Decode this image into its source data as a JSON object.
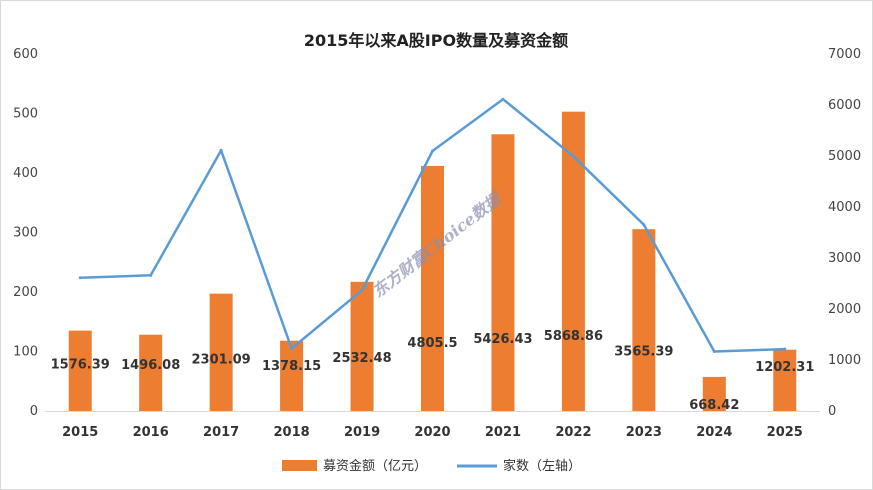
{
  "chart_data": {
    "type": "bar",
    "title": "2015年以来A股IPO数量及募资金额",
    "categories": [
      "2015",
      "2016",
      "2017",
      "2018",
      "2019",
      "2020",
      "2021",
      "2022",
      "2023",
      "2024",
      "2025"
    ],
    "series": [
      {
        "name": "募资金额（亿元）",
        "type": "bar",
        "axis": "right",
        "color": "#ed7d31",
        "values": [
          1576.39,
          1496.08,
          2301.09,
          1378.15,
          2532.48,
          4805.5,
          5426.43,
          5868.86,
          3565.39,
          668.42,
          1202.31
        ],
        "labels": [
          "1576.39",
          "1496.08",
          "2301.09",
          "1378.15",
          "2532.48",
          "4805.5",
          "5426.43",
          "5868.86",
          "3565.39",
          "668.42",
          "1202.31"
        ]
      },
      {
        "name": "家数（左轴）",
        "type": "line",
        "axis": "left",
        "color": "#5b9bd5",
        "values": [
          224,
          228,
          438,
          105,
          203,
          437,
          524,
          428,
          313,
          100,
          104
        ]
      }
    ],
    "y_left": {
      "min": 0,
      "max": 600,
      "ticks": [
        "0",
        "100",
        "200",
        "300",
        "400",
        "500",
        "600"
      ]
    },
    "y_right": {
      "min": 0,
      "max": 7000,
      "ticks": [
        "0",
        "1000",
        "2000",
        "3000",
        "4000",
        "5000",
        "6000",
        "7000"
      ]
    },
    "legend_position": "bottom",
    "grid": false,
    "watermark": "东方财富Choice数据"
  }
}
